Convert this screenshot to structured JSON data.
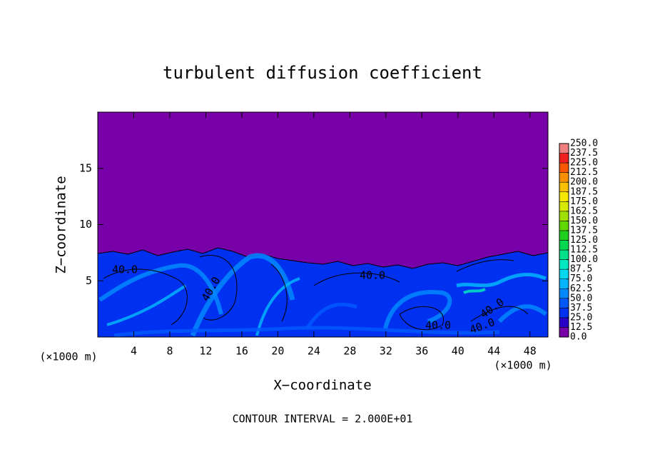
{
  "chart_data": {
    "type": "contour",
    "title": "turbulent diffusion coefficient",
    "x_label": "X−coordinate",
    "y_label": "Z−coordinate",
    "x_unit_labels": [
      "(×1000 m)",
      "(×1000 m)"
    ],
    "footer": "CONTOUR INTERVAL = 2.000E+01",
    "xlim": [
      0,
      50
    ],
    "xticks": [
      4,
      8,
      12,
      16,
      20,
      24,
      28,
      32,
      36,
      40,
      44,
      48
    ],
    "ylim": [
      0,
      20
    ],
    "yticks": [
      5,
      10,
      15
    ],
    "contour_labels": [
      "40.0",
      "40.0",
      "40.0",
      "40.0",
      "40.0",
      "40.0"
    ],
    "colorbar": {
      "lim": [
        0,
        250
      ],
      "ticks": [
        {
          "value": 0,
          "label": "0.0"
        },
        {
          "value": 12.5,
          "label": "12.5"
        },
        {
          "value": 25,
          "label": "25.0"
        },
        {
          "value": 37.5,
          "label": "37.5"
        },
        {
          "value": 50,
          "label": "50.0"
        },
        {
          "value": 62.5,
          "label": "62.5"
        },
        {
          "value": 75,
          "label": "75.0"
        },
        {
          "value": 87.5,
          "label": "87.5"
        },
        {
          "value": 100,
          "label": "100.0"
        },
        {
          "value": 112.5,
          "label": "112.5"
        },
        {
          "value": 125,
          "label": "125.0"
        },
        {
          "value": 137.5,
          "label": "137.5"
        },
        {
          "value": 150,
          "label": "150.0"
        },
        {
          "value": 162.5,
          "label": "162.5"
        },
        {
          "value": 175,
          "label": "175.0"
        },
        {
          "value": 187.5,
          "label": "187.5"
        },
        {
          "value": 200,
          "label": "200.0"
        },
        {
          "value": 212.5,
          "label": "212.5"
        },
        {
          "value": 225,
          "label": "225.0"
        },
        {
          "value": 237.5,
          "label": "237.5"
        },
        {
          "value": 250,
          "label": "250.0"
        }
      ],
      "colors": [
        "#7800a8",
        "#2a00c8",
        "#0030f0",
        "#0058ff",
        "#0088ff",
        "#00b4ff",
        "#00d8f0",
        "#00e8c0",
        "#00e088",
        "#00d850",
        "#20d020",
        "#60d800",
        "#a0e000",
        "#d8e800",
        "#f8e800",
        "#f8c000",
        "#f89000",
        "#f85800",
        "#f02020",
        "#f08080"
      ]
    }
  }
}
